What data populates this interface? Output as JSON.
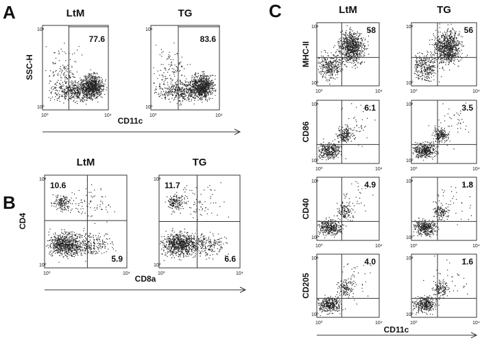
{
  "panels": [
    {
      "label": "A",
      "columns": [
        "LtM",
        "TG"
      ],
      "ylabel": "SSC-H",
      "xlabel": "CD11c",
      "rows": [
        {
          "values": [
            "77.6",
            "83.6"
          ]
        }
      ]
    },
    {
      "label": "B",
      "columns": [
        "LtM",
        "TG"
      ],
      "ylabel": "CD4",
      "xlabel": "CD8a",
      "rows": [
        {
          "upper": [
            "10.6",
            "11.7"
          ],
          "lower": [
            "5.9",
            "6.6"
          ]
        }
      ]
    },
    {
      "label": "C",
      "columns": [
        "LtM",
        "TG"
      ],
      "xlabel": "CD11c",
      "rows": [
        {
          "ylabel": "MHC-II",
          "values": [
            "58",
            "56"
          ]
        },
        {
          "ylabel": "CD86",
          "values": [
            "6.1",
            "3.5"
          ]
        },
        {
          "ylabel": "CD40",
          "values": [
            "4.9",
            "1.8"
          ]
        },
        {
          "ylabel": "CD205",
          "values": [
            "4.0",
            "1.6"
          ]
        }
      ]
    }
  ],
  "axis_ticks": [
    "10⁰",
    "10⁴"
  ]
}
